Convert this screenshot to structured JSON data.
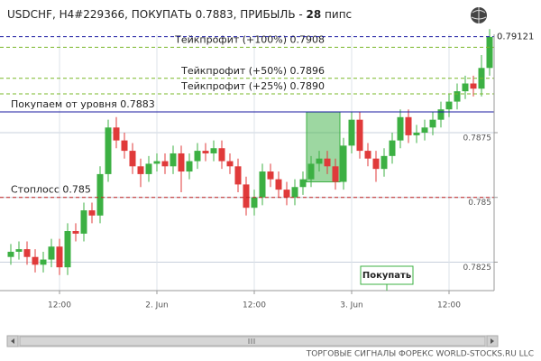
{
  "chart_data": {
    "type": "candlestick",
    "title": {
      "prefix": "USDCHF, H4#229366, ПОКУПАТЬ 0.7883, ПРИБЫЛЬ - ",
      "profit": 28,
      "suffix": " пипс"
    },
    "categories": [
      null,
      null,
      null,
      null,
      null,
      null,
      "12:00",
      null,
      null,
      null,
      null,
      null,
      null,
      null,
      null,
      null,
      null,
      null,
      "2. Jun",
      null,
      null,
      null,
      null,
      null,
      null,
      null,
      null,
      null,
      null,
      null,
      "12:00",
      null,
      null,
      null,
      null,
      null,
      null,
      null,
      null,
      null,
      null,
      null,
      "3. Jun",
      null,
      null,
      null,
      null,
      null,
      null,
      null,
      null,
      null,
      null,
      null,
      "12:00",
      null,
      null,
      null,
      null,
      null
    ],
    "open": [
      0.7827,
      0.7829,
      0.783,
      0.7827,
      0.7824,
      0.7826,
      0.7831,
      0.7823,
      0.7837,
      0.7836,
      0.7845,
      0.7843,
      0.7859,
      0.7877,
      0.7872,
      0.7868,
      0.7862,
      0.7859,
      0.7863,
      0.7864,
      0.7862,
      0.7867,
      0.786,
      0.7864,
      0.7868,
      0.7867,
      0.7869,
      0.7864,
      0.7862,
      0.7855,
      0.7846,
      0.785,
      0.786,
      0.7857,
      0.7853,
      0.785,
      0.7854,
      0.7857,
      0.7863,
      0.7865,
      0.7862,
      0.7856,
      0.787,
      0.788,
      0.7868,
      0.7865,
      0.7861,
      0.7866,
      0.7872,
      0.7881,
      0.7874,
      0.7875,
      0.7877,
      0.788,
      0.7884,
      0.7887,
      0.7891,
      0.7894,
      0.7892,
      0.79
    ],
    "high": [
      0.7832,
      0.7833,
      0.7833,
      0.783,
      0.7829,
      0.7834,
      0.7834,
      0.784,
      0.784,
      0.7848,
      0.7848,
      0.7862,
      0.788,
      0.7881,
      0.7875,
      0.7871,
      0.7865,
      0.7866,
      0.7867,
      0.7867,
      0.787,
      0.787,
      0.7867,
      0.7871,
      0.7871,
      0.7872,
      0.7872,
      0.7867,
      0.7865,
      0.7858,
      0.7853,
      0.7863,
      0.7863,
      0.786,
      0.7856,
      0.7857,
      0.786,
      0.7866,
      0.7868,
      0.7868,
      0.7865,
      0.7873,
      0.7883,
      0.7883,
      0.7871,
      0.7868,
      0.7869,
      0.7875,
      0.7884,
      0.7884,
      0.7878,
      0.788,
      0.7883,
      0.7887,
      0.789,
      0.7894,
      0.7897,
      0.7897,
      0.7905,
      0.7915
    ],
    "low": [
      0.7824,
      0.7826,
      0.7824,
      0.7821,
      0.7821,
      0.7823,
      0.782,
      0.782,
      0.7833,
      0.7833,
      0.784,
      0.784,
      0.7856,
      0.7869,
      0.7865,
      0.7859,
      0.7854,
      0.7856,
      0.786,
      0.7859,
      0.7859,
      0.7852,
      0.7857,
      0.7861,
      0.7864,
      0.7864,
      0.7861,
      0.7859,
      0.7852,
      0.7843,
      0.7843,
      0.7847,
      0.7854,
      0.785,
      0.7847,
      0.7847,
      0.7851,
      0.7854,
      0.786,
      0.7859,
      0.7853,
      0.7853,
      0.7867,
      0.7865,
      0.7862,
      0.7856,
      0.7858,
      0.7863,
      0.7869,
      0.7871,
      0.7871,
      0.7872,
      0.7874,
      0.7877,
      0.7881,
      0.7884,
      0.7888,
      0.7889,
      0.7889,
      0.7897
    ],
    "close": [
      0.7829,
      0.783,
      0.7827,
      0.7824,
      0.7826,
      0.7831,
      0.7823,
      0.7837,
      0.7836,
      0.7845,
      0.7843,
      0.7859,
      0.7877,
      0.7872,
      0.7868,
      0.7862,
      0.7859,
      0.7863,
      0.7864,
      0.7862,
      0.7867,
      0.786,
      0.7864,
      0.7868,
      0.7867,
      0.7869,
      0.7864,
      0.7862,
      0.7855,
      0.7846,
      0.785,
      0.786,
      0.7857,
      0.7853,
      0.785,
      0.7854,
      0.7857,
      0.7863,
      0.7865,
      0.7862,
      0.7856,
      0.787,
      0.788,
      0.7868,
      0.7865,
      0.7861,
      0.7866,
      0.7872,
      0.7881,
      0.7874,
      0.7875,
      0.7877,
      0.788,
      0.7884,
      0.7887,
      0.7891,
      0.7894,
      0.7892,
      0.79,
      0.7912
    ],
    "up_color": "#3cb043",
    "down_color": "#e03a3a",
    "ylim": [
      0.7814,
      0.7913
    ],
    "yticks": [
      0.7825,
      0.785,
      0.7875
    ],
    "grid": true,
    "current_price": 0.79121,
    "levels": [
      {
        "label": "Тейкпрофит (+100%) 0.7908",
        "value": 0.7908,
        "color": "#7ab829",
        "dashed": true,
        "align": "right"
      },
      {
        "label": "Тейкпрофит (+50%) 0.7896",
        "value": 0.7896,
        "color": "#7ab829",
        "dashed": true,
        "align": "right"
      },
      {
        "label": "Тейкпрофит (+25%) 0.7890",
        "value": 0.789,
        "color": "#7ab829",
        "dashed": true,
        "align": "right"
      },
      {
        "label": "Покупаем от уровня 0.7883",
        "value": 0.7883,
        "color": "#1a1aa0",
        "dashed": false,
        "align": "left"
      },
      {
        "label": "Стоплосс 0.785",
        "value": 0.785,
        "color": "#c02020",
        "dashed": true,
        "align": "left"
      }
    ],
    "entry_zone": {
      "from": 37,
      "to": 40,
      "low": 0.7856,
      "high": 0.7883,
      "color": "#3cb043"
    },
    "annotation": "Покупать",
    "footer": "ТОРГОВЫЕ СИГНАЛЫ ФОРЕКС WORLD-STOCKS.RU LLC"
  }
}
